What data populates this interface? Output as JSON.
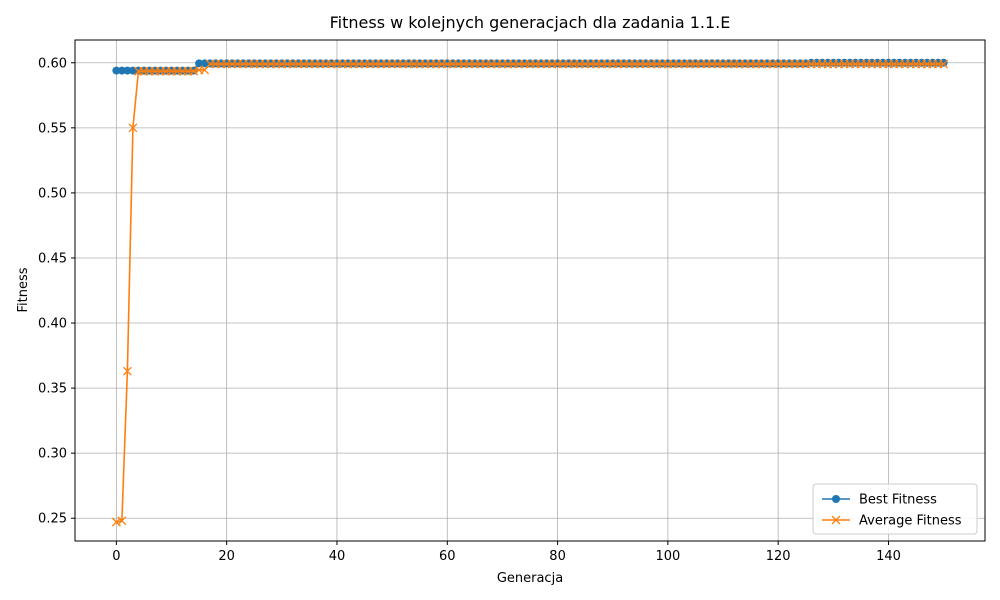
{
  "chart_data": {
    "type": "line",
    "title": "Fitness w kolejnych generacjach dla zadania 1.1.E",
    "xlabel": "Generacja",
    "ylabel": "Fitness",
    "xlim": [
      -7.5,
      157.5
    ],
    "ylim": [
      0.2325,
      0.6175
    ],
    "xticks": [
      0,
      20,
      40,
      60,
      80,
      100,
      120,
      140
    ],
    "yticks": [
      0.25,
      0.3,
      0.35,
      0.4,
      0.45,
      0.5,
      0.55,
      0.6
    ],
    "ytick_labels": [
      "0.25",
      "0.30",
      "0.35",
      "0.40",
      "0.45",
      "0.50",
      "0.55",
      "0.60"
    ],
    "grid": true,
    "legend_position": "lower-right",
    "x": {
      "start": 0,
      "end": 150
    },
    "series": [
      {
        "name": "Best Fitness",
        "color": "#1f77b4",
        "marker": "circle",
        "segments": [
          {
            "from": 0,
            "to": 14,
            "value": 0.594
          },
          {
            "from": 15,
            "to": 125,
            "value": 0.5995
          },
          {
            "from": 126,
            "to": 150,
            "value": 0.6
          }
        ]
      },
      {
        "name": "Average Fitness",
        "color": "#ff7f0e",
        "marker": "x",
        "points_head": [
          [
            0,
            0.247
          ],
          [
            1,
            0.248
          ],
          [
            2,
            0.363
          ],
          [
            3,
            0.55
          ]
        ],
        "segments": [
          {
            "from": 4,
            "to": 14,
            "value": 0.5935
          },
          {
            "from": 15,
            "to": 16,
            "value": 0.5945
          },
          {
            "from": 17,
            "to": 150,
            "value": 0.599
          }
        ]
      }
    ]
  }
}
